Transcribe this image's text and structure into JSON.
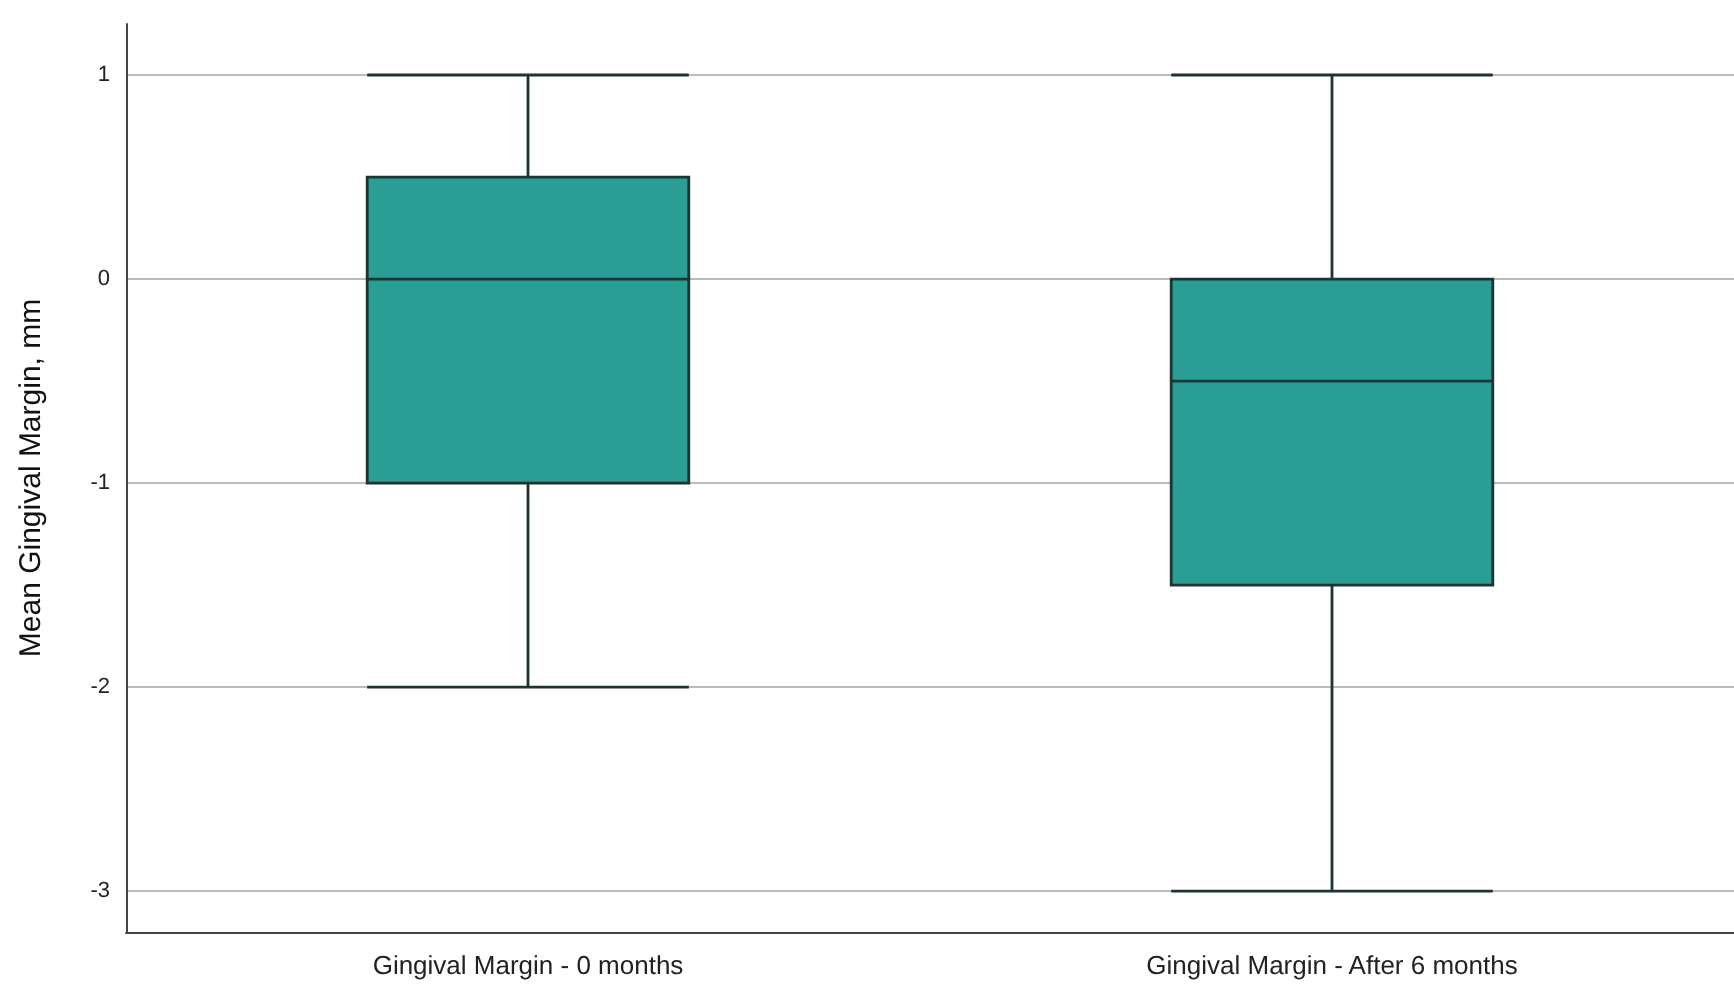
{
  "chart_data": {
    "type": "box",
    "ylabel": "Mean Gingival Margin, mm",
    "categories": [
      "Gingival Margin - 0 months",
      "Gingival Margin - After 6 months"
    ],
    "boxes": [
      {
        "low": -2,
        "q1": -1,
        "median": 0,
        "q3": 0.5,
        "high": 1
      },
      {
        "low": -3,
        "q1": -1.5,
        "median": -0.5,
        "q3": 0,
        "high": 1
      }
    ],
    "color": "#2a9d94",
    "ylim": [
      -3.2,
      1.25
    ],
    "yticks": [
      -3,
      -2,
      -1,
      0,
      1
    ],
    "grid": "y"
  }
}
